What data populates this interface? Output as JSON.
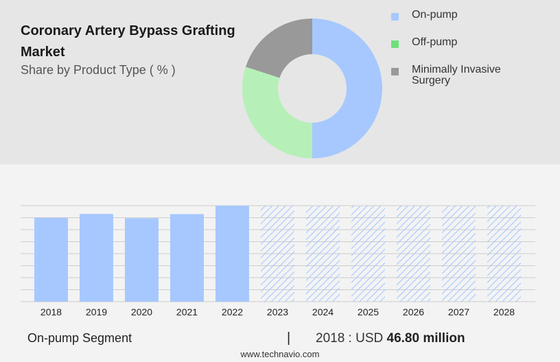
{
  "header": {
    "title": "Coronary Artery Bypass Grafting Market",
    "subtitle": "Share by Product Type ( % )"
  },
  "colors": {
    "on_pump": "#a6c8ff",
    "off_pump": "#b6f0b8",
    "minimally_invasive": "#999999",
    "forecast_hatch": "#a6c8ff",
    "gridline": "#cccccc"
  },
  "chart_data": [
    {
      "type": "pie",
      "variant": "donut",
      "series": [
        {
          "name": "On-pump",
          "value": 50,
          "color": "#a6c8ff",
          "legend_color": "#a6c8ff"
        },
        {
          "name": "Off-pump",
          "value": 30,
          "color": "#b6f0b8",
          "legend_color": "#6ee07a"
        },
        {
          "name": "Minimally Invasive Surgery",
          "value": 20,
          "color": "#999999",
          "legend_color": "#999999"
        }
      ],
      "legend_position": "right"
    },
    {
      "type": "bar",
      "categories": [
        "2018",
        "2019",
        "2020",
        "2021",
        "2022",
        "2023",
        "2024",
        "2025",
        "2026",
        "2027",
        "2028"
      ],
      "values": [
        46.8,
        49.0,
        46.6,
        48.9,
        53.6,
        null,
        null,
        null,
        null,
        null,
        null
      ],
      "forecast": [
        false,
        false,
        false,
        false,
        false,
        true,
        true,
        true,
        true,
        true,
        true
      ],
      "forecast_placeholder_value": 53.6,
      "ylim": [
        0,
        53.6
      ],
      "grid": true,
      "y_tick_labels": false
    }
  ],
  "footer": {
    "segment_label": "On-pump Segment",
    "separator": "|",
    "value_prefix": "2018 : USD",
    "value_amount": "46.80 million",
    "watermark": "www.technavio.com"
  }
}
